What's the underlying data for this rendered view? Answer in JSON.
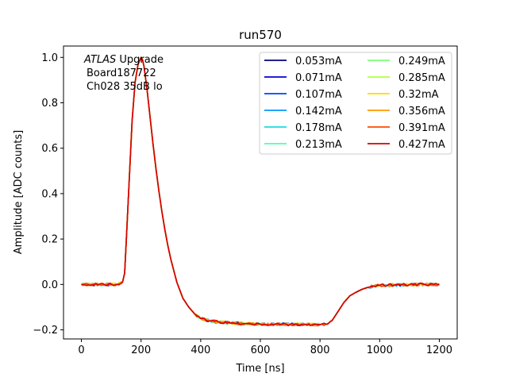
{
  "chart_data": {
    "type": "line",
    "title": "run570",
    "xlabel": "Time [ns]",
    "ylabel": "Amplitude [ADC counts]",
    "xlim": [
      -60,
      1260
    ],
    "ylim": [
      -0.24,
      1.05
    ],
    "xticks": [
      0,
      200,
      400,
      600,
      800,
      1000,
      1200
    ],
    "yticks": [
      -0.2,
      0.0,
      0.2,
      0.4,
      0.6,
      0.8,
      1.0
    ],
    "xtick_labels": [
      "0",
      "200",
      "400",
      "600",
      "800",
      "1000",
      "1200"
    ],
    "ytick_labels": [
      "−0.2",
      "0.0",
      "0.2",
      "0.4",
      "0.6",
      "0.8",
      "1.0"
    ],
    "grid": false,
    "legend_position": "top-right",
    "legend_columns": 2,
    "annotation": {
      "line1_italic": "ATLAS",
      "line1_rest": " Upgrade",
      "line2": "Board187722",
      "line3": "Ch028 35dB lo"
    },
    "pulse_shape": {
      "x": [
        0,
        60,
        120,
        138,
        145,
        150,
        160,
        170,
        180,
        190,
        200,
        205,
        210,
        220,
        230,
        240,
        250,
        260,
        270,
        280,
        290,
        300,
        320,
        340,
        360,
        380,
        400,
        430,
        460,
        500,
        550,
        600,
        650,
        700,
        750,
        800,
        820,
        830,
        840,
        850,
        860,
        870,
        880,
        890,
        900,
        920,
        940,
        960,
        980,
        1000,
        1050,
        1100,
        1150,
        1200
      ],
      "y": [
        0.0,
        0.0,
        0.0,
        0.01,
        0.05,
        0.18,
        0.45,
        0.72,
        0.89,
        0.97,
        1.0,
        0.99,
        0.96,
        0.86,
        0.74,
        0.62,
        0.51,
        0.41,
        0.32,
        0.24,
        0.17,
        0.11,
        0.01,
        -0.06,
        -0.1,
        -0.13,
        -0.15,
        -0.16,
        -0.165,
        -0.17,
        -0.173,
        -0.175,
        -0.175,
        -0.176,
        -0.176,
        -0.177,
        -0.175,
        -0.17,
        -0.16,
        -0.14,
        -0.12,
        -0.1,
        -0.08,
        -0.065,
        -0.05,
        -0.035,
        -0.022,
        -0.013,
        -0.007,
        -0.004,
        -0.002,
        -0.001,
        0.0,
        0.0
      ]
    },
    "series": [
      {
        "name": "0.053mA",
        "color": "#00007f"
      },
      {
        "name": "0.071mA",
        "color": "#0000d5"
      },
      {
        "name": "0.107mA",
        "color": "#0040ff"
      },
      {
        "name": "0.142mA",
        "color": "#0094ff"
      },
      {
        "name": "0.178mA",
        "color": "#18dcdf"
      },
      {
        "name": "0.213mA",
        "color": "#4dffa9"
      },
      {
        "name": "0.249mA",
        "color": "#7dff7a"
      },
      {
        "name": "0.285mA",
        "color": "#b0ff46"
      },
      {
        "name": "0.32mA",
        "color": "#ffd900"
      },
      {
        "name": "0.356mA",
        "color": "#ff9700"
      },
      {
        "name": "0.391mA",
        "color": "#ff4a00"
      },
      {
        "name": "0.427mA",
        "color": "#d70000"
      }
    ]
  }
}
